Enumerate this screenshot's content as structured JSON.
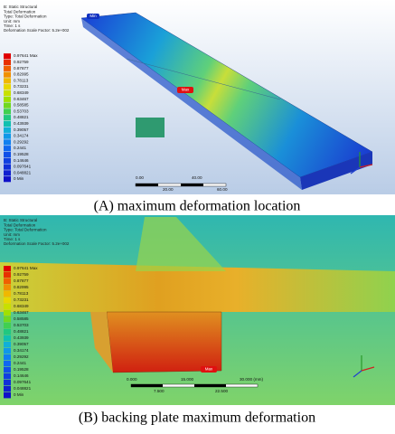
{
  "panels": [
    {
      "header": [
        "B: Static Structural",
        "Total Deformation",
        "Type: Total Deformation",
        "Unit: mm",
        "Time: 1 s",
        "Deformation Scale Factor: 5.2e+002"
      ],
      "legend": [
        "0.97641 Max",
        "0.92759",
        "0.87877",
        "0.82995",
        "0.78113",
        "0.73231",
        "0.68349",
        "0.63467",
        "0.58585",
        "0.53703",
        "0.48821",
        "0.43939",
        "0.39057",
        "0.34174",
        "0.29292",
        "0.2441",
        "0.19528",
        "0.14646",
        "0.097641",
        "0.048821",
        "0 Min"
      ],
      "max_tag": "Max",
      "min_tag": "Min",
      "scale": [
        "0.00",
        "40.00",
        "20.00",
        "60.00"
      ],
      "caption": "(A) maximum deformation location"
    },
    {
      "header": [
        "B: Static Structural",
        "Total Deformation",
        "Type: Total Deformation",
        "Unit: mm",
        "Time: 1 s",
        "Deformation Scale Factor: 5.2e+002"
      ],
      "legend": [
        "0.97641 Max",
        "0.92759",
        "0.87877",
        "0.82995",
        "0.78113",
        "0.73231",
        "0.68349",
        "0.63467",
        "0.58585",
        "0.53703",
        "0.48821",
        "0.43939",
        "0.39057",
        "0.34174",
        "0.29292",
        "0.2441",
        "0.19528",
        "0.14646",
        "0.097641",
        "0.048821",
        "0 Min"
      ],
      "max_tag": "Max",
      "scale": [
        "0.000",
        "15.000",
        "30.000 (mm)",
        "7.500",
        "22.500"
      ],
      "caption": "(B) backing plate maximum deformation"
    }
  ]
}
